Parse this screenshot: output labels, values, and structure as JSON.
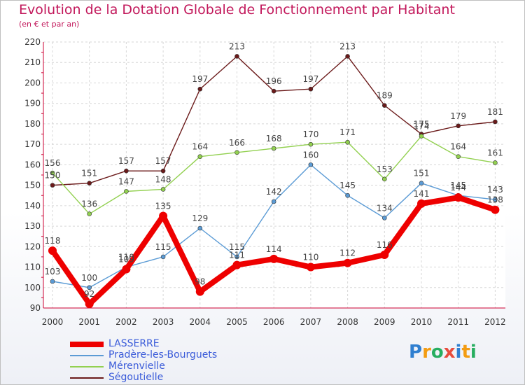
{
  "header": {
    "title": "Evolution de la Dotation Globale de Fonctionnement par Habitant",
    "subtitle": "(en € et par an)"
  },
  "logo": {
    "text": "Proxiti",
    "letters": [
      "P",
      "r",
      "o",
      "x",
      "i",
      "t",
      "i"
    ],
    "colors": [
      "#2f7fd0",
      "#f39c12",
      "#27ae60",
      "#e74c3c",
      "#2f7fd0",
      "#f39c12",
      "#27ae60"
    ]
  },
  "chart_data": {
    "type": "line",
    "x": [
      "2000",
      "2001",
      "2002",
      "2003",
      "2004",
      "2005",
      "2006",
      "2007",
      "2008",
      "2009",
      "2010",
      "2011",
      "2012"
    ],
    "ylim": [
      90,
      220
    ],
    "yticks": [
      "90",
      "100",
      "110",
      "120",
      "130",
      "140",
      "150",
      "160",
      "170",
      "180",
      "190",
      "200",
      "210",
      "220"
    ],
    "grid": true,
    "legend": "bottom-left",
    "series": [
      {
        "name": "LASSERRE",
        "color": "#ee0000",
        "values": [
          118,
          92,
          109,
          135,
          98,
          111,
          114,
          110,
          112,
          116,
          141,
          144,
          138
        ]
      },
      {
        "name": "Pradère-les-Bourguets",
        "color": "#5b9bd5",
        "values": [
          103,
          100,
          110,
          115,
          129,
          115,
          142,
          160,
          145,
          134,
          151,
          145,
          143
        ]
      },
      {
        "name": "Mérenvielle",
        "color": "#92d050",
        "values": [
          156,
          136,
          147,
          148,
          164,
          166,
          168,
          170,
          171,
          153,
          174,
          164,
          161
        ]
      },
      {
        "name": "Ségoutielle",
        "color": "#6b1a1a",
        "values": [
          150,
          151,
          157,
          157,
          197,
          213,
          196,
          197,
          213,
          189,
          175,
          179,
          181
        ]
      }
    ]
  }
}
